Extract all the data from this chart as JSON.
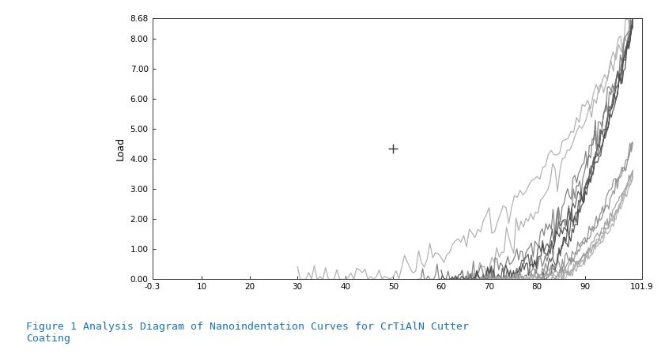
{
  "title_color": "#1874CD",
  "ylabel": "Load",
  "xlim": [
    -0.3,
    101.9
  ],
  "ylim": [
    0.0,
    8.68
  ],
  "xticks": [
    -0.3,
    10,
    20,
    30,
    40,
    50,
    60,
    70,
    80,
    90,
    101.9
  ],
  "xtick_labels": [
    "-0.3",
    "10",
    "20",
    "30",
    "40",
    "50",
    "60",
    "70",
    "80",
    "90",
    "101.9"
  ],
  "yticks": [
    0.0,
    1.0,
    2.0,
    3.0,
    4.0,
    5.0,
    6.0,
    7.0,
    8.0,
    8.68
  ],
  "ytick_labels": [
    "0.00",
    "1.00",
    "2.00",
    "3.00",
    "4.00",
    "5.00",
    "6.00",
    "7.00",
    "8.00",
    "8.68"
  ],
  "cross_x": 50,
  "cross_y": 4.35,
  "background_color": "#ffffff",
  "caption": "Figure 1 Analysis Diagram of Nanoindentation Curves for CrTiAlN Cutter\nCoating",
  "curves": [
    {
      "x0": 30,
      "xmax": 100,
      "ymax": 8.68,
      "power": 2.8,
      "color": "#aaaaaa",
      "lw": 0.9,
      "noise": 0.03,
      "seed": 1
    },
    {
      "x0": 55,
      "xmax": 100,
      "ymax": 8.68,
      "power": 3.2,
      "color": "#777777",
      "lw": 0.9,
      "noise": 0.025,
      "seed": 2
    },
    {
      "x0": 60,
      "xmax": 100,
      "ymax": 8.55,
      "power": 3.4,
      "color": "#555555",
      "lw": 0.9,
      "noise": 0.02,
      "seed": 3
    },
    {
      "x0": 62,
      "xmax": 100,
      "ymax": 8.4,
      "power": 3.5,
      "color": "#444444",
      "lw": 0.9,
      "noise": 0.02,
      "seed": 4
    },
    {
      "x0": 65,
      "xmax": 100,
      "ymax": 4.55,
      "power": 3.8,
      "color": "#888888",
      "lw": 0.9,
      "noise": 0.025,
      "seed": 5
    },
    {
      "x0": 68,
      "xmax": 100,
      "ymax": 3.6,
      "power": 4.0,
      "color": "#999999",
      "lw": 0.9,
      "noise": 0.025,
      "seed": 6
    },
    {
      "x0": 70,
      "xmax": 100,
      "ymax": 3.4,
      "power": 4.1,
      "color": "#aaaaaa",
      "lw": 0.9,
      "noise": 0.025,
      "seed": 7
    }
  ]
}
